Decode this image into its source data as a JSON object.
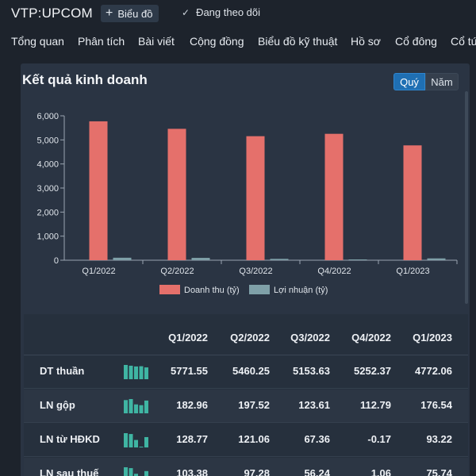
{
  "header": {
    "ticker": "VTP:UPCOM",
    "chart_button_label": "Biểu đồ",
    "follow_label": "Đang theo dõi"
  },
  "nav": {
    "tabs": [
      "Tổng quan",
      "Phân tích",
      "Bài viết",
      "Cộng đồng",
      "Biểu đồ kỹ thuật",
      "Hồ sơ",
      "Cổ đông",
      "Cổ tứ"
    ]
  },
  "panel": {
    "title": "Kết quả kinh doanh",
    "period_options": [
      "Quý",
      "Năm"
    ],
    "selected_period": "Quý"
  },
  "colors": {
    "revenue": "#e5706b",
    "profit": "#7fa0a8",
    "spark": "#3fb5a3",
    "toggle_active": "#1f6fb3"
  },
  "chart_data": {
    "type": "bar",
    "categories": [
      "Q1/2022",
      "Q2/2022",
      "Q3/2022",
      "Q4/2022",
      "Q1/2023"
    ],
    "series": [
      {
        "name": "Doanh thu (tỷ)",
        "values": [
          5771.55,
          5460.25,
          5153.63,
          5252.37,
          4772.06
        ]
      },
      {
        "name": "Lợi nhuận (tỷ)",
        "values": [
          103.38,
          97.28,
          56.24,
          1.06,
          75.74
        ]
      }
    ],
    "y_ticks": [
      "0",
      "1,000",
      "2,000",
      "3,000",
      "4,000",
      "5,000",
      "6,000"
    ],
    "ylim": [
      0,
      6000
    ],
    "legend_position": "bottom"
  },
  "table": {
    "headers": [
      "Q1/2022",
      "Q2/2022",
      "Q3/2022",
      "Q4/2022",
      "Q1/2023"
    ],
    "rows": [
      {
        "label": "DT thuần",
        "values": [
          "5771.55",
          "5460.25",
          "5153.63",
          "5252.37",
          "4772.06"
        ]
      },
      {
        "label": "LN gộp",
        "values": [
          "182.96",
          "197.52",
          "123.61",
          "112.79",
          "176.54"
        ]
      },
      {
        "label": "LN từ HĐKD",
        "values": [
          "128.77",
          "121.06",
          "67.36",
          "-0.17",
          "93.22"
        ]
      },
      {
        "label": "LN sau thuế",
        "values": [
          "103.38",
          "97.28",
          "56.24",
          "1.06",
          "75.74"
        ]
      }
    ]
  }
}
